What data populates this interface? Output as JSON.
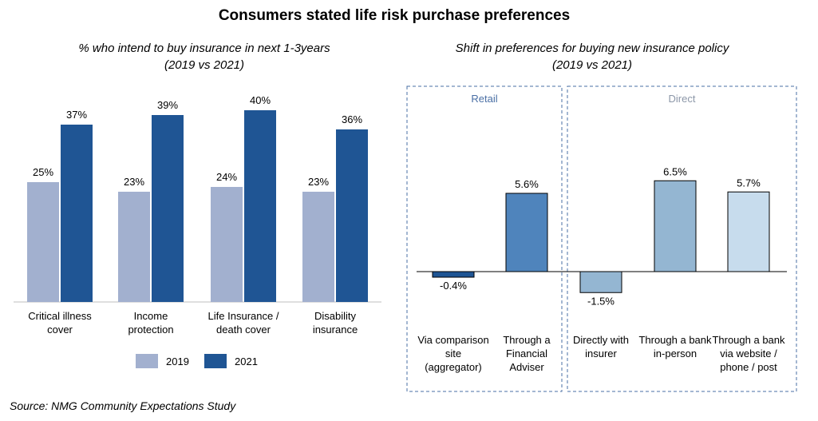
{
  "title": "Consumers stated life risk purchase preferences",
  "source": "Source: NMG Community Expectations Study",
  "chart_data": [
    {
      "type": "bar",
      "title": "% who intend to buy insurance in next 1-3years",
      "subtitle": "(2019 vs 2021)",
      "categories": [
        [
          "Critical illness",
          "cover"
        ],
        [
          "Income",
          "protection"
        ],
        [
          "Life Insurance /",
          "death cover"
        ],
        [
          "Disability",
          "insurance"
        ]
      ],
      "series": [
        {
          "name": "2019",
          "values": [
            25,
            23,
            24,
            23
          ],
          "labels": [
            "25%",
            "23%",
            "24%",
            "23%"
          ],
          "color": "#a2b0cf"
        },
        {
          "name": "2021",
          "values": [
            37,
            39,
            40,
            36
          ],
          "labels": [
            "37%",
            "39%",
            "40%",
            "36%"
          ],
          "color": "#1f5594"
        }
      ],
      "legend_position": "bottom"
    },
    {
      "type": "bar",
      "title": "Shift in preferences for buying new insurance policy",
      "subtitle": "(2019 vs 2021)",
      "groups": [
        {
          "name": "Retail",
          "color": "#4a6fa5",
          "category_indices": [
            0,
            1
          ]
        },
        {
          "name": "Direct",
          "color": "#8c97a8",
          "category_indices": [
            2,
            3,
            4
          ]
        }
      ],
      "categories": [
        [
          "Via comparison",
          "site",
          "(aggregator)"
        ],
        [
          "Through a",
          "Financial",
          "Adviser"
        ],
        [
          "Directly with",
          "insurer"
        ],
        [
          "Through a bank",
          "in-person"
        ],
        [
          "Through a bank",
          "via website /",
          "phone / post"
        ]
      ],
      "values": [
        -0.4,
        5.6,
        -1.5,
        6.5,
        5.7
      ],
      "labels": [
        "-0.4%",
        "5.6%",
        "-1.5%",
        "6.5%",
        "5.7%"
      ],
      "colors": [
        "#1f5594",
        "#4f84bc",
        "#94b6d2",
        "#94b6d2",
        "#c7dced"
      ]
    }
  ]
}
